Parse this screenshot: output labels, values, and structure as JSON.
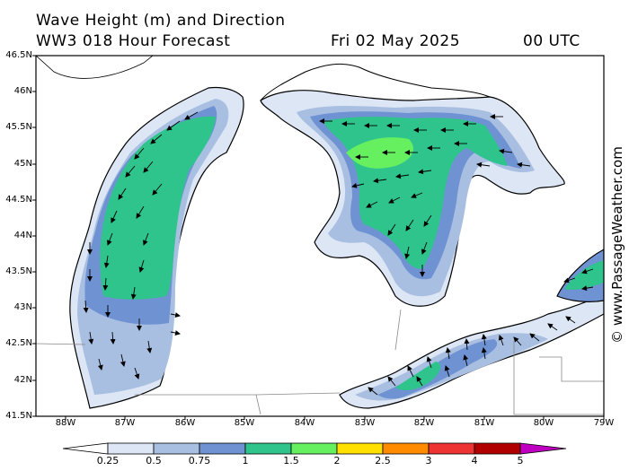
{
  "title": {
    "line1": "Wave Height (m) and Direction",
    "model": "WW3 018 Hour Forecast",
    "date": "Fri 02 May 2025",
    "time": "00 UTC"
  },
  "map": {
    "region": "Great Lakes (Lake Michigan, Lake Huron, Lake Erie)",
    "lon_range": [
      -88.5,
      -79
    ],
    "lat_range": [
      41.5,
      46.5
    ],
    "lat_labels": [
      "46.5N",
      "46N",
      "45.5N",
      "45N",
      "44.5N",
      "44N",
      "43.5N",
      "43N",
      "42.5N",
      "42N",
      "41.5N"
    ],
    "lon_labels": [
      "88W",
      "87W",
      "86W",
      "85W",
      "84W",
      "83W",
      "82W",
      "81W",
      "80W",
      "79W"
    ]
  },
  "colorbar": {
    "ticks": [
      "0.25",
      "0.5",
      "0.75",
      "1",
      "1.5",
      "2",
      "2.5",
      "3",
      "4",
      "5"
    ],
    "colors": [
      "#ffffff",
      "#dde6f4",
      "#a9bfe2",
      "#6f92d2",
      "#2fc48c",
      "#66f060",
      "#ffe000",
      "#ff8c00",
      "#ee3333",
      "#b00000",
      "#c000c0"
    ]
  },
  "credit": "© www.PassageWeather.com"
}
